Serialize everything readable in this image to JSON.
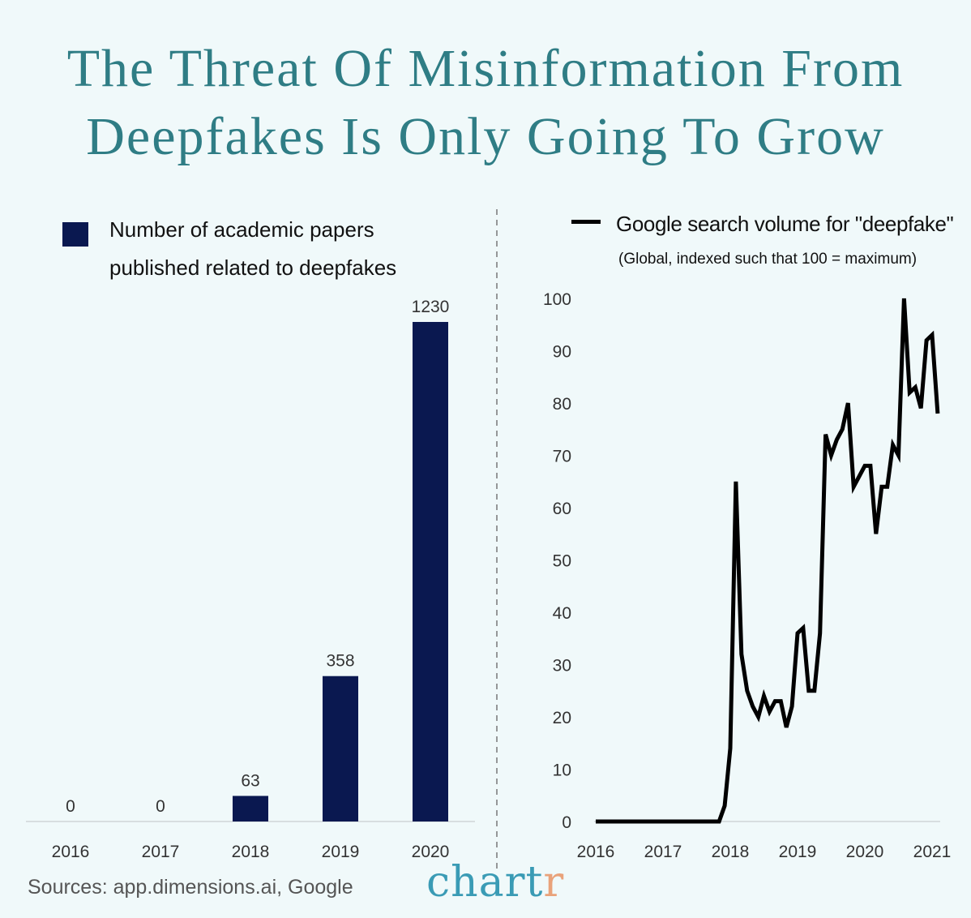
{
  "title_line1": "The Threat Of Misinformation From",
  "title_line2": "Deepfakes Is Only Going To Grow",
  "source": "Sources: app.dimensions.ai, Google",
  "logo": {
    "main": "chart",
    "accent": "r"
  },
  "colors": {
    "title": "#2f7d85",
    "bar": "#0a1850",
    "line": "#000000",
    "background": "#f0f9fa",
    "logo": "#3a9bb5",
    "logo_accent": "#e9a27a"
  },
  "chart_data": [
    {
      "type": "bar",
      "legend": {
        "line1": "Number of academic papers",
        "line2": "published related to deepfakes"
      },
      "categories": [
        "2016",
        "2017",
        "2018",
        "2019",
        "2020"
      ],
      "values": [
        0,
        0,
        63,
        358,
        1230
      ],
      "data_labels": [
        "0",
        "0",
        "63",
        "358",
        "1230"
      ],
      "legend_placement": "top-left",
      "grid": false
    },
    {
      "type": "line",
      "legend": {
        "line1": "Google search volume for \"deepfake\"",
        "line2": "(Global, indexed such that 100 = maximum)"
      },
      "ylim": [
        0,
        100
      ],
      "yticks": [
        "0",
        "10",
        "20",
        "30",
        "40",
        "50",
        "60",
        "70",
        "80",
        "90",
        "100"
      ],
      "xticks": [
        "2016",
        "2017",
        "2018",
        "2019",
        "2020",
        "2021"
      ],
      "grid": false,
      "legend_placement": "top",
      "series": [
        {
          "x": [
            "2016-01",
            "2017-11",
            "2017-12",
            "2018-01",
            "2018-02",
            "2018-03",
            "2018-04",
            "2018-05",
            "2018-06",
            "2018-07",
            "2018-08",
            "2018-09",
            "2018-10",
            "2018-11",
            "2018-12",
            "2019-01",
            "2019-02",
            "2019-03",
            "2019-04",
            "2019-05",
            "2019-06",
            "2019-07",
            "2019-08",
            "2019-09",
            "2019-10",
            "2019-11",
            "2019-12",
            "2020-01",
            "2020-02",
            "2020-03",
            "2020-04",
            "2020-05",
            "2020-06",
            "2020-07",
            "2020-08",
            "2020-09",
            "2020-10",
            "2020-11",
            "2020-12",
            "2021-01",
            "2021-02"
          ],
          "y": [
            0,
            0,
            3,
            14,
            65,
            32,
            25,
            22,
            20,
            24,
            21,
            23,
            23,
            18,
            22,
            36,
            37,
            25,
            25,
            36,
            74,
            70,
            73,
            75,
            80,
            64,
            66,
            68,
            68,
            55,
            64,
            64,
            72,
            70,
            100,
            82,
            83,
            79,
            92,
            93,
            78
          ]
        }
      ]
    }
  ]
}
